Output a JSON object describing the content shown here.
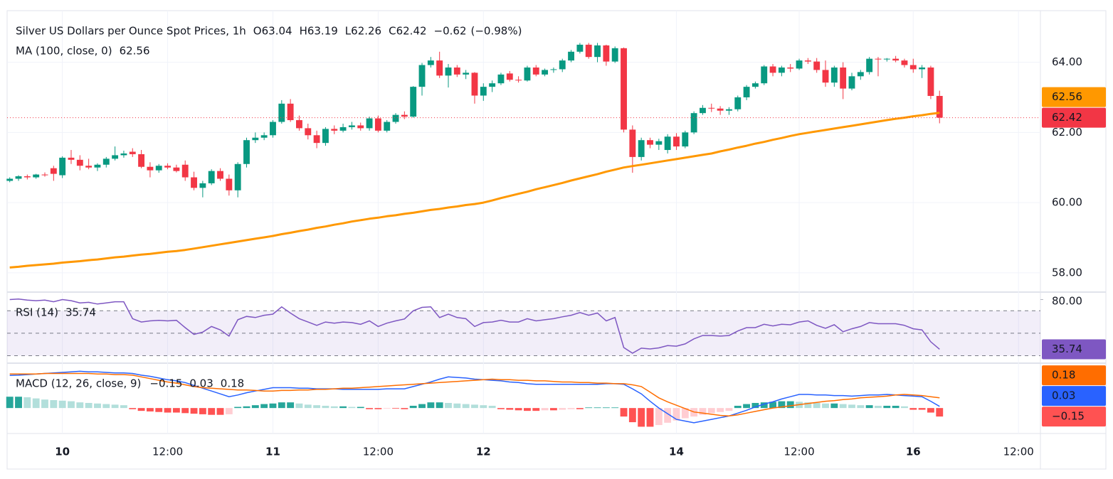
{
  "chart_data": [
    {
      "type": "candlestick",
      "title": "Silver US Dollars per Ounce Spot Prices, 1h",
      "ohlc_keys": [
        "O",
        "H",
        "L",
        "C"
      ],
      "change": {
        "value": -0.62,
        "label": "−0.62"
      },
      "change_pct": {
        "value": -0.98,
        "label": "(−0.98%)"
      },
      "up_color": "#089981",
      "down_color": "#f23645",
      "xlim": [
        -0.3,
        117.5
      ],
      "xticks": [
        {
          "value": 6,
          "label": "10"
        },
        {
          "value": 18,
          "label": "12:00"
        },
        {
          "value": 30,
          "label": "11"
        },
        {
          "value": 42,
          "label": "12:00"
        },
        {
          "value": 54,
          "label": "12"
        },
        {
          "value": 76,
          "label": "14"
        },
        {
          "value": 90,
          "label": "12:00"
        },
        {
          "value": 103,
          "label": "16"
        },
        {
          "value": 115,
          "label": "12:00"
        }
      ],
      "ylim": [
        57.47,
        65.47
      ],
      "yticks": [
        {
          "value": 58,
          "label": "58.00"
        },
        {
          "value": 60,
          "label": "60.00"
        },
        {
          "value": 62,
          "label": "62.00"
        },
        {
          "value": 64,
          "label": "64.00"
        }
      ],
      "grid": true,
      "open": [
        60.62,
        60.68,
        60.75,
        60.72,
        60.8,
        60.98,
        60.78,
        61.28,
        61.22,
        61.05,
        61.0,
        61.08,
        61.25,
        61.35,
        61.45,
        61.38,
        61.02,
        60.92,
        61.05,
        61.0,
        61.08,
        60.72,
        60.42,
        60.55,
        60.9,
        60.68,
        60.35,
        61.1,
        61.78,
        61.85,
        61.92,
        62.3,
        62.82,
        62.35,
        62.12,
        61.92,
        61.7,
        62.1,
        62.05,
        62.15,
        62.2,
        62.12,
        62.4,
        62.05,
        62.3,
        62.5,
        62.45,
        63.3,
        63.92,
        64.05,
        63.62,
        63.85,
        63.65,
        63.7,
        63.05,
        63.3,
        63.4,
        63.68,
        63.5,
        63.48,
        63.85,
        63.65,
        63.78,
        63.8,
        64.05,
        64.3,
        64.5,
        64.15,
        64.48,
        64.02,
        64.4,
        62.08,
        61.3,
        61.78,
        61.65,
        61.5,
        61.88,
        61.6,
        62.0,
        62.55,
        62.7,
        62.68,
        62.62,
        62.66,
        63.0,
        63.3,
        63.4,
        63.88,
        63.7,
        63.85,
        63.82,
        64.05,
        64.02,
        63.78,
        63.42,
        63.85,
        63.25,
        63.6,
        63.72,
        64.1,
        64.08,
        64.1,
        64.05,
        63.92,
        63.8,
        63.85,
        63.04
      ],
      "high": [
        60.72,
        60.78,
        60.8,
        60.82,
        60.86,
        61.05,
        61.32,
        61.5,
        61.35,
        61.25,
        61.12,
        61.3,
        61.6,
        61.48,
        61.55,
        61.5,
        61.15,
        61.1,
        61.12,
        61.08,
        61.2,
        60.88,
        60.62,
        60.95,
        60.98,
        60.8,
        61.15,
        61.85,
        62.0,
        62.0,
        62.35,
        62.92,
        62.95,
        62.48,
        62.25,
        62.05,
        62.15,
        62.2,
        62.25,
        62.3,
        62.28,
        62.45,
        62.48,
        62.35,
        62.55,
        62.6,
        63.32,
        63.98,
        64.15,
        64.3,
        63.95,
        63.92,
        63.78,
        63.72,
        63.4,
        63.48,
        63.7,
        63.75,
        63.6,
        63.9,
        63.92,
        63.82,
        63.85,
        64.1,
        64.35,
        64.55,
        64.55,
        64.55,
        64.5,
        64.45,
        64.42,
        62.2,
        61.85,
        61.85,
        61.82,
        61.95,
        61.98,
        62.05,
        62.6,
        62.78,
        62.82,
        62.75,
        62.72,
        63.05,
        63.35,
        63.45,
        63.92,
        63.95,
        63.9,
        63.95,
        64.1,
        64.12,
        64.12,
        64.05,
        63.9,
        64.0,
        63.7,
        63.78,
        64.15,
        64.15,
        64.12,
        64.18,
        64.1,
        64.1,
        63.92,
        63.9,
        63.19
      ],
      "low": [
        60.58,
        60.62,
        60.66,
        60.68,
        60.74,
        60.62,
        60.7,
        61.1,
        60.92,
        60.95,
        60.9,
        61.0,
        61.2,
        61.28,
        61.3,
        60.98,
        60.72,
        60.85,
        60.95,
        60.86,
        60.62,
        60.35,
        60.15,
        60.5,
        60.62,
        60.2,
        60.15,
        61.0,
        61.7,
        61.78,
        61.85,
        62.25,
        62.3,
        62.05,
        61.8,
        61.55,
        61.62,
        61.95,
        62.0,
        62.08,
        62.05,
        62.05,
        62.0,
        62.0,
        62.25,
        62.38,
        62.42,
        63.05,
        63.85,
        63.55,
        63.28,
        63.58,
        63.52,
        62.82,
        62.9,
        63.15,
        63.35,
        63.45,
        63.42,
        63.45,
        63.6,
        63.6,
        63.7,
        63.72,
        64.0,
        64.25,
        64.1,
        64.0,
        63.9,
        63.98,
        62.0,
        60.85,
        61.2,
        61.55,
        61.5,
        61.4,
        61.5,
        61.55,
        61.95,
        62.5,
        62.58,
        62.5,
        62.5,
        62.6,
        62.92,
        63.25,
        63.35,
        63.6,
        63.6,
        63.72,
        63.78,
        63.95,
        63.7,
        63.3,
        63.3,
        62.95,
        63.2,
        63.5,
        63.65,
        63.6,
        64.02,
        64.0,
        63.85,
        63.7,
        63.55,
        62.95,
        62.26
      ],
      "close": [
        60.68,
        60.75,
        60.72,
        60.8,
        60.78,
        60.82,
        61.28,
        61.22,
        61.05,
        61.0,
        61.08,
        61.25,
        61.35,
        61.4,
        61.38,
        61.02,
        60.92,
        61.05,
        61.0,
        60.9,
        60.72,
        60.42,
        60.55,
        60.9,
        60.68,
        60.35,
        61.1,
        61.78,
        61.85,
        61.92,
        62.3,
        62.82,
        62.35,
        62.12,
        61.92,
        61.7,
        62.1,
        62.05,
        62.15,
        62.2,
        62.12,
        62.4,
        62.05,
        62.3,
        62.5,
        62.45,
        63.3,
        63.92,
        64.05,
        63.62,
        63.85,
        63.65,
        63.7,
        63.05,
        63.3,
        63.4,
        63.65,
        63.5,
        63.48,
        63.85,
        63.65,
        63.78,
        63.8,
        64.05,
        64.3,
        64.5,
        64.15,
        64.48,
        64.02,
        64.4,
        62.08,
        61.3,
        61.78,
        61.65,
        61.75,
        61.88,
        61.6,
        62.0,
        62.55,
        62.7,
        62.68,
        62.62,
        62.66,
        63.0,
        63.3,
        63.4,
        63.88,
        63.7,
        63.85,
        63.82,
        64.05,
        64.02,
        63.78,
        63.42,
        63.85,
        63.25,
        63.6,
        63.72,
        64.1,
        64.08,
        64.1,
        64.05,
        63.92,
        63.8,
        63.85,
        63.04,
        62.42
      ],
      "series": [
        {
          "name": "MA (100, close, 0)",
          "color": "#ff9800",
          "values": [
            58.15,
            58.17,
            58.2,
            58.22,
            58.24,
            58.26,
            58.29,
            58.31,
            58.33,
            58.36,
            58.38,
            58.41,
            58.44,
            58.46,
            58.49,
            58.52,
            58.54,
            58.57,
            58.6,
            58.62,
            58.65,
            58.69,
            58.73,
            58.77,
            58.81,
            58.85,
            58.89,
            58.93,
            58.97,
            59.01,
            59.05,
            59.1,
            59.14,
            59.19,
            59.23,
            59.28,
            59.32,
            59.37,
            59.41,
            59.46,
            59.5,
            59.54,
            59.57,
            59.61,
            59.64,
            59.68,
            59.71,
            59.75,
            59.79,
            59.82,
            59.86,
            59.89,
            59.93,
            59.96,
            60.0,
            60.06,
            60.13,
            60.19,
            60.25,
            60.31,
            60.38,
            60.44,
            60.5,
            60.56,
            60.63,
            60.69,
            60.75,
            60.81,
            60.88,
            60.94,
            61.0,
            61.04,
            61.08,
            61.12,
            61.16,
            61.2,
            61.24,
            61.28,
            61.32,
            61.36,
            61.4,
            61.46,
            61.51,
            61.57,
            61.62,
            61.68,
            61.73,
            61.79,
            61.84,
            61.9,
            61.95,
            61.99,
            62.03,
            62.07,
            62.11,
            62.15,
            62.19,
            62.23,
            62.27,
            62.31,
            62.35,
            62.39,
            62.42,
            62.46,
            62.49,
            62.53,
            62.56
          ]
        }
      ]
    },
    {
      "type": "line",
      "name": "RSI (14)",
      "color": "#7e57c2",
      "ylim": [
        24,
        86
      ],
      "yticks": [
        {
          "value": 80,
          "label": "80.00"
        }
      ],
      "bands": [
        30,
        50,
        70
      ],
      "values": [
        80,
        80.5,
        79.5,
        79,
        79.5,
        78,
        80,
        79,
        77,
        77.5,
        76,
        77,
        78,
        78,
        63,
        60,
        61,
        61.5,
        61,
        61.5,
        55,
        49,
        51,
        56,
        53,
        47.5,
        62,
        65,
        64,
        66,
        67,
        73.5,
        68,
        63,
        60,
        57,
        60,
        59,
        60,
        59.5,
        58,
        61,
        56,
        59,
        61,
        62.7,
        70,
        73,
        73.5,
        64,
        67,
        64,
        63,
        56,
        59.5,
        60,
        61.5,
        60,
        60,
        63,
        61,
        62,
        63,
        64.6,
        66,
        68.4,
        66,
        68,
        61,
        64,
        37.3,
        32.2,
        36.7,
        36,
        37,
        39,
        38.5,
        40.5,
        45,
        48,
        48,
        47.5,
        48,
        52,
        55,
        55,
        58,
        56.5,
        58,
        57.5,
        60,
        61,
        57,
        54.4,
        57.6,
        51.3,
        54,
        56,
        59.5,
        58.5,
        58.5,
        58.5,
        57,
        54,
        53,
        42.4,
        35.74
      ]
    },
    {
      "type": "macd",
      "name": "MACD (12, 26, close, 9)",
      "ylim": [
        -0.45,
        0.78
      ],
      "histogram": {
        "color": "#ff5252",
        "colors": [
          "#26a69a",
          "#b2dfdb",
          "#ffcdd2",
          "#ff5252"
        ],
        "value_label": "−0.15",
        "values": [
          0.2,
          0.2,
          0.19,
          0.17,
          0.15,
          0.14,
          0.13,
          0.12,
          0.1,
          0.09,
          0.08,
          0.07,
          0.06,
          0.05,
          -0.02,
          -0.05,
          -0.06,
          -0.07,
          -0.08,
          -0.08,
          -0.09,
          -0.1,
          -0.11,
          -0.12,
          -0.12,
          -0.11,
          0.02,
          0.03,
          0.05,
          0.07,
          0.08,
          0.1,
          0.1,
          0.08,
          0.06,
          0.05,
          0.04,
          0.03,
          0.03,
          0.02,
          0.02,
          -0.02,
          -0.02,
          -0.01,
          -0.01,
          -0.02,
          0.04,
          0.07,
          0.1,
          0.1,
          0.09,
          0.08,
          0.07,
          0.06,
          0.05,
          0.04,
          -0.02,
          -0.03,
          -0.04,
          -0.05,
          -0.05,
          -0.04,
          -0.04,
          -0.03,
          -0.02,
          -0.02,
          0.01,
          0.01,
          0.01,
          0.01,
          -0.15,
          -0.25,
          -0.33,
          -0.33,
          -0.3,
          -0.26,
          -0.22,
          -0.18,
          -0.15,
          -0.12,
          -0.09,
          -0.07,
          -0.05,
          0.04,
          0.07,
          0.09,
          0.1,
          0.11,
          0.12,
          0.12,
          0.11,
          0.1,
          0.09,
          0.08,
          0.08,
          0.07,
          0.06,
          0.05,
          0.05,
          0.04,
          0.04,
          0.04,
          0.03,
          -0.03,
          -0.03,
          -0.08,
          -0.15
        ]
      },
      "macd": {
        "color": "#2962ff",
        "values": [
          0.575,
          0.58,
          0.59,
          0.6,
          0.61,
          0.62,
          0.63,
          0.64,
          0.65,
          0.64,
          0.64,
          0.63,
          0.62,
          0.62,
          0.61,
          0.58,
          0.56,
          0.53,
          0.5,
          0.48,
          0.45,
          0.4,
          0.35,
          0.3,
          0.25,
          0.2,
          0.23,
          0.27,
          0.3,
          0.33,
          0.36,
          0.36,
          0.36,
          0.35,
          0.35,
          0.34,
          0.34,
          0.34,
          0.33,
          0.33,
          0.33,
          0.33,
          0.33,
          0.34,
          0.34,
          0.34,
          0.38,
          0.42,
          0.46,
          0.51,
          0.55,
          0.54,
          0.53,
          0.51,
          0.5,
          0.49,
          0.48,
          0.46,
          0.45,
          0.43,
          0.42,
          0.42,
          0.42,
          0.42,
          0.42,
          0.42,
          0.42,
          0.42,
          0.43,
          0.43,
          0.42,
          0.34,
          0.25,
          0.12,
          0,
          -0.1,
          -0.2,
          -0.23,
          -0.26,
          -0.23,
          -0.2,
          -0.17,
          -0.14,
          -0.09,
          -0.04,
          0.02,
          0.07,
          0.11,
          0.16,
          0.2,
          0.24,
          0.24,
          0.23,
          0.23,
          0.22,
          0.22,
          0.21,
          0.22,
          0.23,
          0.23,
          0.24,
          0.23,
          0.22,
          0.21,
          0.2,
          0.12,
          0.03
        ]
      },
      "signal": {
        "color": "#ff6d00",
        "values": [
          0.6,
          0.6,
          0.6,
          0.6,
          0.61,
          0.61,
          0.61,
          0.61,
          0.61,
          0.61,
          0.6,
          0.6,
          0.59,
          0.59,
          0.58,
          0.55,
          0.52,
          0.49,
          0.46,
          0.44,
          0.41,
          0.38,
          0.36,
          0.35,
          0.34,
          0.33,
          0.32,
          0.32,
          0.31,
          0.3,
          0.3,
          0.31,
          0.31,
          0.32,
          0.32,
          0.33,
          0.33,
          0.34,
          0.35,
          0.35,
          0.36,
          0.37,
          0.38,
          0.39,
          0.4,
          0.41,
          0.42,
          0.43,
          0.44,
          0.45,
          0.46,
          0.47,
          0.48,
          0.49,
          0.5,
          0.51,
          0.5,
          0.5,
          0.49,
          0.49,
          0.48,
          0.48,
          0.47,
          0.46,
          0.46,
          0.45,
          0.45,
          0.44,
          0.44,
          0.43,
          0.43,
          0.41,
          0.38,
          0.28,
          0.18,
          0.11,
          0.05,
          -0.01,
          -0.07,
          -0.09,
          -0.11,
          -0.13,
          -0.14,
          -0.12,
          -0.09,
          -0.06,
          -0.03,
          0,
          0.02,
          0.04,
          0.06,
          0.08,
          0.1,
          0.12,
          0.13,
          0.15,
          0.16,
          0.18,
          0.19,
          0.2,
          0.21,
          0.23,
          0.24,
          0.23,
          0.22,
          0.2,
          0.18
        ]
      }
    }
  ]
}
